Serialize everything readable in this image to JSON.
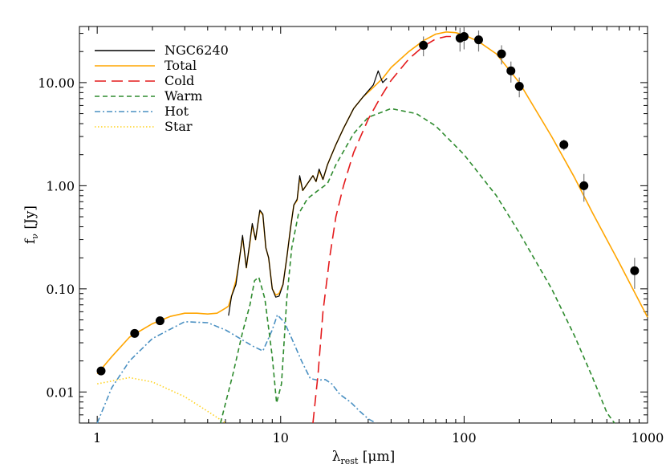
{
  "chart_data": {
    "type": "line",
    "scale": {
      "x": "log",
      "y": "log"
    },
    "xlim": [
      0.8,
      1000
    ],
    "ylim": [
      0.005,
      35
    ],
    "xlabel": {
      "main": "λ",
      "sub": "rest",
      "unit": " [μm]"
    },
    "ylabel": {
      "main": "f",
      "sub": "ν",
      "unit": " [Jy]"
    },
    "x_ticks": [
      1,
      10,
      100,
      1000
    ],
    "x_tick_labels": [
      "1",
      "10",
      "100",
      "1000"
    ],
    "y_ticks": [
      0.01,
      0.1,
      1,
      10
    ],
    "y_tick_labels": [
      "0.01",
      "0.10",
      "1.00",
      "10.00"
    ],
    "legend_position": "top-left",
    "legend": [
      {
        "label": "NGC6240",
        "color": "#000000",
        "dash": "solid"
      },
      {
        "label": "Total",
        "color": "#ffa500",
        "dash": "solid"
      },
      {
        "label": "Cold",
        "color": "#e41a1c",
        "dash": "long-dash"
      },
      {
        "label": "Warm",
        "color": "#2e8b2e",
        "dash": "dash"
      },
      {
        "label": "Hot",
        "color": "#4a90c2",
        "dash": "dash-dot"
      },
      {
        "label": "Star",
        "color": "#ffd21f",
        "dash": "dot"
      }
    ],
    "series": [
      {
        "name": "Star",
        "color": "#ffd21f",
        "x": [
          1.0,
          1.5,
          2.0,
          3.0,
          4.0,
          5.0
        ],
        "y": [
          0.012,
          0.0138,
          0.0125,
          0.009,
          0.0065,
          0.0046
        ]
      },
      {
        "name": "Hot",
        "color": "#4a90c2",
        "x": [
          1.0,
          1.2,
          1.5,
          2.0,
          3.0,
          4.0,
          5.0,
          6.0,
          7.0,
          8.0,
          9.0,
          9.6,
          10.5,
          11.5,
          13.0,
          14.5,
          16.0,
          17.5,
          19.0,
          21.0,
          24.0,
          27.0,
          30.0,
          33.0
        ],
        "y": [
          0.0046,
          0.011,
          0.02,
          0.033,
          0.048,
          0.047,
          0.04,
          0.033,
          0.028,
          0.025,
          0.04,
          0.056,
          0.047,
          0.033,
          0.02,
          0.0135,
          0.013,
          0.0132,
          0.012,
          0.0095,
          0.008,
          0.0065,
          0.0055,
          0.0046
        ]
      },
      {
        "name": "Warm",
        "color": "#2e8b2e",
        "x": [
          4.7,
          5.5,
          6.2,
          6.8,
          7.2,
          7.6,
          8.2,
          9.0,
          9.5,
          10.1,
          10.8,
          11.5,
          12.5,
          14.0,
          16.0,
          18.0,
          20.0,
          25.0,
          30.0,
          40.0,
          55.0,
          70.0,
          100.0,
          150.0,
          200.0,
          300.0,
          400.0,
          500.0,
          600.0,
          660.0
        ],
        "y": [
          0.0046,
          0.015,
          0.038,
          0.07,
          0.12,
          0.13,
          0.08,
          0.022,
          0.0078,
          0.012,
          0.08,
          0.25,
          0.53,
          0.75,
          0.9,
          1.05,
          1.6,
          3.2,
          4.6,
          5.6,
          5.0,
          3.8,
          2.0,
          0.8,
          0.35,
          0.1,
          0.035,
          0.014,
          0.0063,
          0.0046
        ]
      },
      {
        "name": "Cold",
        "color": "#e41a1c",
        "x": [
          15.0,
          16.0,
          17.0,
          18.5,
          20.0,
          22.0,
          25.0,
          30.0,
          35.0,
          40.0,
          50.0,
          60.0,
          70.0,
          80.0,
          90.0,
          100.0,
          110.0
        ],
        "y": [
          0.0046,
          0.015,
          0.06,
          0.2,
          0.5,
          1.0,
          2.1,
          4.4,
          7.2,
          10.5,
          17.0,
          22.5,
          26.5,
          28.0,
          28.0,
          27.0,
          25.5
        ]
      },
      {
        "name": "Total",
        "color": "#ffa500",
        "x": [
          1.0,
          1.2,
          1.5,
          2.0,
          2.5,
          3.0,
          3.5,
          4.0,
          4.5,
          5.0,
          5.2,
          5.4,
          5.7,
          5.9,
          6.2,
          6.5,
          6.8,
          7.0,
          7.3,
          7.7,
          8.0,
          8.3,
          8.6,
          9.0,
          9.4,
          9.8,
          10.3,
          10.8,
          11.3,
          11.8,
          12.3,
          12.7,
          13.2,
          14.0,
          15.0,
          15.6,
          16.2,
          17.0,
          18.0,
          20.0,
          22.0,
          25.0,
          28.0,
          32.0,
          36.0,
          40.0,
          50.0,
          60.0,
          70.0,
          80.0,
          90.0,
          100.0,
          120.0,
          150.0,
          200.0,
          300.0,
          400.0,
          500.0,
          700.0,
          1000.0
        ],
        "y": [
          0.015,
          0.022,
          0.034,
          0.046,
          0.054,
          0.058,
          0.058,
          0.057,
          0.058,
          0.065,
          0.068,
          0.085,
          0.12,
          0.17,
          0.32,
          0.16,
          0.28,
          0.42,
          0.3,
          0.57,
          0.52,
          0.25,
          0.2,
          0.1,
          0.087,
          0.09,
          0.11,
          0.2,
          0.38,
          0.65,
          0.72,
          1.2,
          0.9,
          1.05,
          1.25,
          1.1,
          1.4,
          1.15,
          1.6,
          2.5,
          3.6,
          5.6,
          7.2,
          9.0,
          11.0,
          14.0,
          20.0,
          25.5,
          29.5,
          31.0,
          30.5,
          29.0,
          25.0,
          19.0,
          10.0,
          3.0,
          1.2,
          0.55,
          0.18,
          0.053
        ]
      },
      {
        "name": "NGC6240",
        "color": "#000000",
        "x": [
          5.2,
          5.4,
          5.7,
          5.9,
          6.2,
          6.5,
          6.8,
          7.0,
          7.3,
          7.7,
          8.0,
          8.3,
          8.6,
          9.0,
          9.4,
          9.8,
          10.3,
          10.8,
          11.3,
          11.8,
          12.3,
          12.7,
          13.2,
          14.0,
          15.0,
          15.6,
          16.2,
          17.0,
          18.0,
          20.0,
          22.0,
          25.0,
          28.0,
          32.0,
          34.0,
          36.0,
          38.0
        ],
        "y": [
          0.055,
          0.085,
          0.11,
          0.17,
          0.33,
          0.16,
          0.29,
          0.43,
          0.3,
          0.58,
          0.53,
          0.25,
          0.2,
          0.1,
          0.083,
          0.085,
          0.11,
          0.2,
          0.38,
          0.65,
          0.74,
          1.25,
          0.9,
          1.05,
          1.25,
          1.1,
          1.45,
          1.15,
          1.6,
          2.5,
          3.6,
          5.6,
          7.2,
          9.5,
          13.0,
          10.0,
          11.0
        ]
      }
    ],
    "points": {
      "name": "NGC6240",
      "color": "#000000",
      "x": [
        1.05,
        1.6,
        2.2,
        60,
        95,
        100,
        120,
        160,
        180,
        200,
        350,
        450,
        850
      ],
      "y": [
        0.016,
        0.037,
        0.049,
        23,
        27,
        28,
        26,
        19,
        13,
        9.2,
        2.5,
        1.0,
        0.15
      ],
      "err": [
        0,
        0,
        0,
        5,
        7,
        7,
        6,
        4,
        3,
        2,
        0.3,
        0.3,
        0.05
      ]
    }
  }
}
